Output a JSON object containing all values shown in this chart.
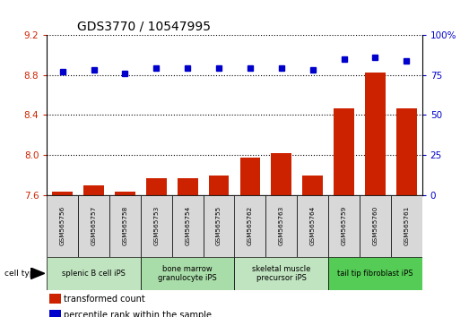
{
  "title": "GDS3770 / 10547995",
  "samples": [
    "GSM565756",
    "GSM565757",
    "GSM565758",
    "GSM565753",
    "GSM565754",
    "GSM565755",
    "GSM565762",
    "GSM565763",
    "GSM565764",
    "GSM565759",
    "GSM565760",
    "GSM565761"
  ],
  "bar_values": [
    7.63,
    7.7,
    7.63,
    7.77,
    7.77,
    7.79,
    7.97,
    8.02,
    7.79,
    8.47,
    8.82,
    8.47
  ],
  "dot_values": [
    77,
    78,
    76,
    79,
    79,
    79,
    79,
    79,
    78,
    85,
    86,
    84
  ],
  "ylim_left": [
    7.6,
    9.2
  ],
  "ylim_right": [
    0,
    100
  ],
  "yticks_left": [
    7.6,
    8.0,
    8.4,
    8.8,
    9.2
  ],
  "yticks_right": [
    0,
    25,
    50,
    75,
    100
  ],
  "bar_color": "#cc2200",
  "dot_color": "#0000cc",
  "groups": [
    {
      "label": "splenic B cell iPS",
      "start": 0,
      "end": 3,
      "color": "#c0e4c0"
    },
    {
      "label": "bone marrow\ngranulocyte iPS",
      "start": 3,
      "end": 6,
      "color": "#a8dca8"
    },
    {
      "label": "skeletal muscle\nprecursor iPS",
      "start": 6,
      "end": 9,
      "color": "#c0e4c0"
    },
    {
      "label": "tail tip fibroblast iPS",
      "start": 9,
      "end": 12,
      "color": "#55cc55"
    }
  ],
  "legend_items": [
    {
      "label": "transformed count",
      "color": "#cc2200"
    },
    {
      "label": "percentile rank within the sample",
      "color": "#0000cc"
    }
  ],
  "cell_type_label": "cell type",
  "title_fontsize": 10,
  "tick_fontsize": 7.5,
  "sample_fontsize": 5.2,
  "group_fontsize": 6.0,
  "legend_fontsize": 7.0,
  "bar_width": 0.65
}
